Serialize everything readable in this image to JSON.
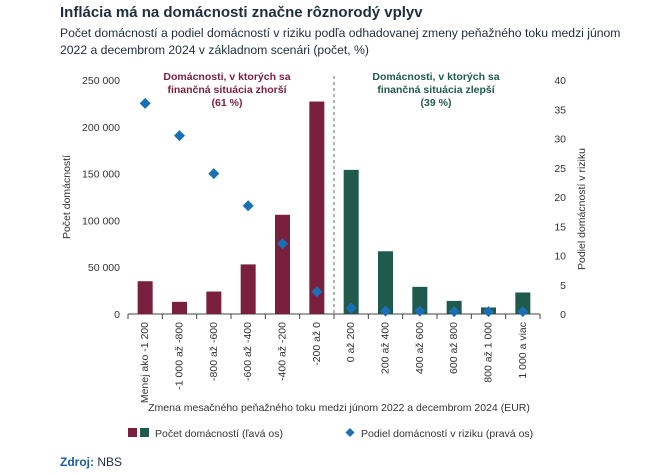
{
  "title": "Inflácia má na domácnosti značne rôznorodý vplyv",
  "subtitle": "Počet domácností a podiel domácností v riziku podľa odhadovanej zmeny peňažného toku medzi júnom 2022 a decembrom 2024 v základnom scenári (počet, %)",
  "source": {
    "label": "Zdroj:",
    "value": "NBS"
  },
  "colors": {
    "worse": "#7b1f3f",
    "better": "#1f5a4c",
    "risk": "#1a6fb5",
    "annotation_worse": "#7b1f3f",
    "annotation_better": "#1f5a4c"
  },
  "chart_data": {
    "type": "bar",
    "categories": [
      "Menej ako -1 200",
      "-1 000 až -800",
      "-800 až -600",
      "-600 až -400",
      "-400 až -200",
      "-200 až 0",
      "0 až 200",
      "200 až 400",
      "400 až 600",
      "600 až 800",
      "800 až 1 000",
      "1 000 a viac"
    ],
    "series": [
      {
        "name": "Počet domácností (ľavá os)",
        "axis": "left",
        "type": "bar",
        "values": [
          35000,
          13000,
          24000,
          53000,
          106000,
          227000,
          154000,
          67000,
          29000,
          14000,
          7000,
          23000
        ]
      },
      {
        "name": "Podiel domácností v riziku (pravá os)",
        "axis": "right",
        "type": "scatter",
        "marker": "diamond",
        "values": [
          36,
          30.5,
          24,
          18.5,
          12,
          3.8,
          1,
          0.5,
          0.5,
          0.4,
          0.4,
          0.4
        ]
      }
    ],
    "xlabel": "Zmena mesačného peňažného toku medzi júnom 2022 a decembrom 2024 (EUR)",
    "ylabel_left": "Počet domácností",
    "ylabel_right": "Podiel domácností v riziku",
    "ylim_left": [
      0,
      250000
    ],
    "ylim_right": [
      0,
      40
    ],
    "yticks_left": [
      "0",
      "50 000",
      "100 000",
      "150 000",
      "200 000",
      "250 000"
    ],
    "yticks_right": [
      "0",
      "5",
      "10",
      "15",
      "20",
      "25",
      "30",
      "35",
      "40"
    ],
    "annotations": {
      "worse": [
        "Domácnosti, v ktorých sa",
        "finančná situácia zhorší",
        "(61 %)"
      ],
      "better": [
        "Domácnosti, v ktorých sa",
        "finančná situácia zlepší",
        "(39 %)"
      ]
    },
    "divider_after_category": 5,
    "legend_position": "bottom",
    "grid": false
  }
}
